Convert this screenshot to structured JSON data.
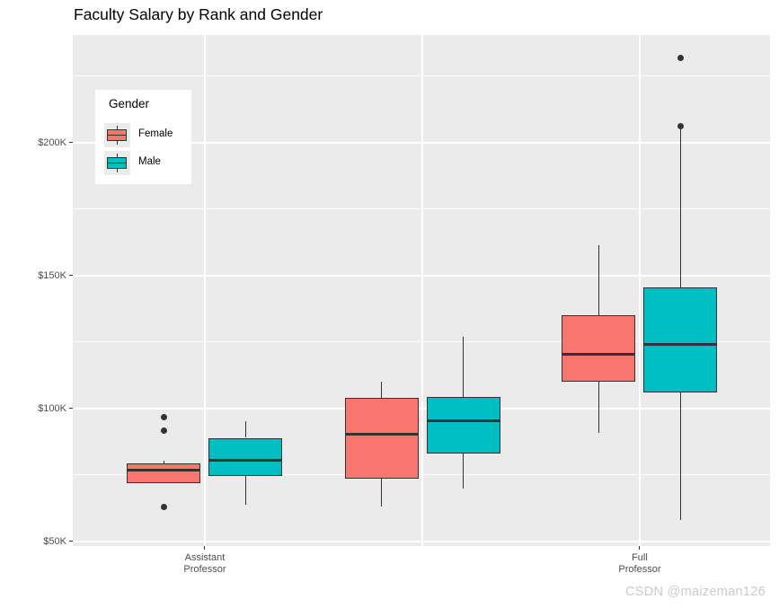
{
  "page": {
    "watermark": "CSDN @maizeman126"
  },
  "chart_data": {
    "type": "boxplot",
    "title": "Faculty Salary by Rank and Gender",
    "y_axis": {
      "unit": "salary_usd_thousands",
      "tick_labels": [
        "$50K",
        "$100K",
        "$150K",
        "$200K"
      ],
      "tick_values": [
        50,
        100,
        150,
        200
      ],
      "minor_grid_values": [
        75,
        125,
        175,
        225
      ],
      "ylim": [
        48.3,
        240.5
      ]
    },
    "x_axis": {
      "categories": [
        {
          "labeled": true,
          "tick_label_lines": [
            "Assistant",
            "Professor"
          ]
        },
        {
          "labeled": false,
          "tick_label_lines": []
        },
        {
          "labeled": true,
          "tick_label_lines": [
            "Full",
            "Professor"
          ]
        }
      ]
    },
    "legend": {
      "title": "Gender",
      "position": "inside-top-left",
      "items": [
        {
          "label": "Female",
          "color": "#F8766D"
        },
        {
          "label": "Male",
          "color": "#00BFC4"
        }
      ]
    },
    "boxes": [
      {
        "category_index": 0,
        "gender": "Female",
        "whisker_low": null,
        "q1": 72,
        "median": 77,
        "q3": 79.5,
        "whisker_high": 80.5,
        "outliers": [
          96.9,
          91.8,
          62.9
        ]
      },
      {
        "category_index": 0,
        "gender": "Male",
        "whisker_low": 64,
        "q1": 74.5,
        "median": 80.5,
        "q3": 89,
        "whisker_high": 95.3,
        "outliers": []
      },
      {
        "category_index": 1,
        "gender": "Female",
        "whisker_low": 63,
        "q1": 73.5,
        "median": 90.5,
        "q3": 104,
        "whisker_high": 110,
        "outliers": []
      },
      {
        "category_index": 1,
        "gender": "Male",
        "whisker_low": 70,
        "q1": 83,
        "median": 95.5,
        "q3": 104.5,
        "whisker_high": 127,
        "outliers": []
      },
      {
        "category_index": 2,
        "gender": "Female",
        "whisker_low": 91,
        "q1": 110,
        "median": 120.5,
        "q3": 135,
        "whisker_high": 161.5,
        "outliers": []
      },
      {
        "category_index": 2,
        "gender": "Male",
        "whisker_low": 58,
        "q1": 106,
        "median": 124,
        "q3": 145.5,
        "whisker_high": 205,
        "outliers": [
          206.3,
          231.8
        ]
      }
    ],
    "colors": {
      "panel_background": "#EBEBEB",
      "grid": "#FFFFFF",
      "box_stroke": "#333333",
      "outlier": "#333333",
      "axis_text": "#4D4D4D",
      "title_text": "#000000",
      "watermark_text": "#CBCBCB"
    },
    "layout_hints": {
      "grid": "on",
      "legend_inside_panel": true,
      "middle_category_unlabeled": true
    }
  }
}
